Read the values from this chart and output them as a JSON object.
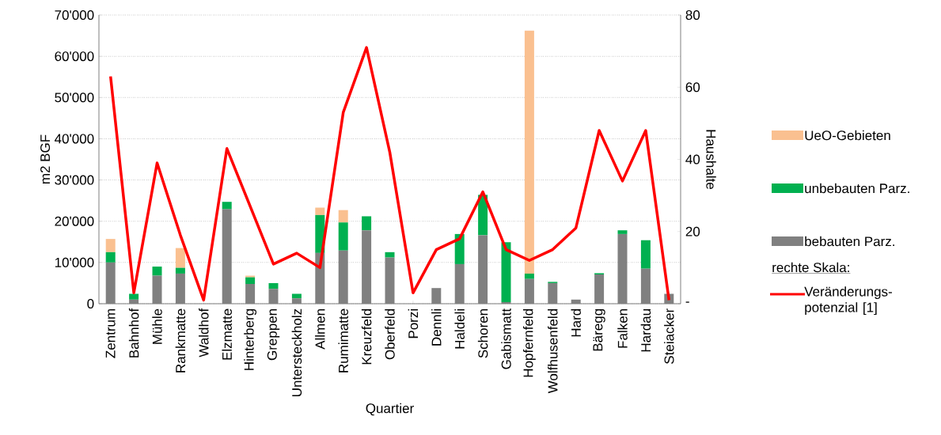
{
  "chart_data": {
    "type": "bar",
    "stacked": true,
    "xlabel": "Quartier",
    "ylabel": "m2 BGF",
    "y2label": "Haushalte",
    "categories": [
      "Zentrum",
      "Bahnhof",
      "Mühle",
      "Rankmatte",
      "Waldhof",
      "Elzmatte",
      "Hinterberg",
      "Greppen",
      "Untersteckholz",
      "Allmen",
      "Rumimatte",
      "Kreuzfeld",
      "Oberfeld",
      "Porzi",
      "Dennli",
      "Haldeli",
      "Schoren",
      "Gabismatt",
      "Hopfernfeld",
      "Wolfhusenfeld",
      "Hard",
      "Bäregg",
      "Falken",
      "Hardau",
      "Steiacker"
    ],
    "series": [
      {
        "name": "bebauten Parz.",
        "color": "#808080",
        "values": [
          10000,
          1000,
          6800,
          7300,
          0,
          22900,
          4800,
          3600,
          1300,
          12300,
          12900,
          17800,
          11200,
          0,
          3800,
          9600,
          16600,
          400,
          6000,
          5000,
          1000,
          7100,
          16900,
          8500,
          2400
        ]
      },
      {
        "name": "unbebauten Parz.",
        "color": "#00b050",
        "values": [
          2500,
          1400,
          2200,
          1400,
          0,
          1800,
          1600,
          1400,
          1100,
          9200,
          6800,
          3400,
          1300,
          0,
          0,
          7300,
          9800,
          14500,
          1300,
          300,
          0,
          300,
          900,
          6900,
          0
        ]
      },
      {
        "name": "UeO-Gebieten",
        "color": "#fac090",
        "values": [
          3200,
          0,
          0,
          4800,
          0,
          0,
          400,
          0,
          0,
          1800,
          3000,
          0,
          0,
          0,
          0,
          0,
          0,
          0,
          58900,
          0,
          0,
          0,
          0,
          0,
          0
        ]
      },
      {
        "name": "Veränderungs-potenzial [1]",
        "type": "line",
        "axis": "y2",
        "color": "#ff0000",
        "values": [
          63,
          3,
          39,
          19,
          1,
          43,
          27,
          11,
          14,
          10,
          53,
          71,
          42,
          3,
          15,
          18,
          31,
          15,
          12,
          15,
          21,
          48,
          34,
          48,
          1
        ]
      }
    ],
    "ylim": [
      0,
      70000
    ],
    "yticks": [
      0,
      {
        "value": 10000,
        "label": "10'000"
      },
      {
        "value": 20000,
        "label": "20'000"
      },
      {
        "value": 30000,
        "label": "30'000"
      },
      {
        "value": 40000,
        "label": "40'000"
      },
      {
        "value": 50000,
        "label": "50'000"
      },
      {
        "value": 60000,
        "label": "60'000"
      },
      {
        "value": 70000,
        "label": "70'000"
      }
    ],
    "y2lim": [
      0,
      80
    ],
    "y2ticks": [
      {
        "value": 0,
        "label": "-"
      },
      20,
      40,
      60,
      80
    ],
    "grid": "y",
    "legend": "right",
    "marker": "none",
    "annotations": [
      "rechte Skala:"
    ]
  }
}
